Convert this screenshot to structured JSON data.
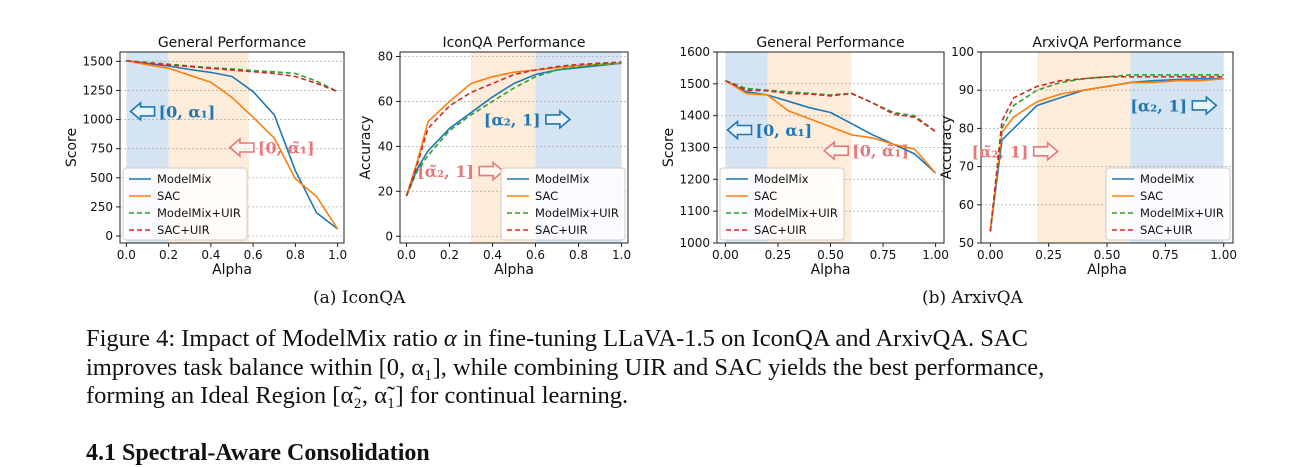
{
  "colors": {
    "ModelMix": "#1f77b4",
    "SAC": "#ff7f0e",
    "ModelMix+UIR": "#2ca02c",
    "SAC+UIR": "#d62728",
    "region_blue": "#c6dbef",
    "region_orange": "#fde6cf",
    "arrow_blue": "#1f77b4",
    "arrow_red": "#e8777a"
  },
  "legend_labels": [
    "ModelMix",
    "SAC",
    "ModelMix+UIR",
    "SAC+UIR"
  ],
  "chart_data": [
    {
      "type": "line",
      "title": "General Performance",
      "xlabel": "Alpha",
      "ylabel": "Score",
      "xlim": [
        -0.03,
        1.03
      ],
      "ylim": [
        -60,
        1580
      ],
      "xticks": [
        0.0,
        0.2,
        0.4,
        0.6,
        0.8,
        1.0
      ],
      "xtick_labels": [
        "0.0",
        "0.2",
        "0.4",
        "0.6",
        "0.8",
        "1.0"
      ],
      "yticks": [
        0,
        250,
        500,
        750,
        1000,
        1250,
        1500
      ],
      "ytick_labels": [
        "0",
        "250",
        "500",
        "750",
        "1000",
        "1250",
        "1500"
      ],
      "grid": "horizontal",
      "legend": "lower-left",
      "series": [
        {
          "name": "ModelMix",
          "x": [
            0.0,
            0.1,
            0.2,
            0.3,
            0.4,
            0.5,
            0.6,
            0.7,
            0.8,
            0.9,
            1.0
          ],
          "y": [
            1505,
            1480,
            1460,
            1430,
            1405,
            1370,
            1240,
            1040,
            560,
            200,
            60
          ]
        },
        {
          "name": "SAC",
          "x": [
            0.0,
            0.1,
            0.2,
            0.3,
            0.4,
            0.5,
            0.6,
            0.7,
            0.8,
            0.9,
            1.0
          ],
          "y": [
            1505,
            1470,
            1440,
            1380,
            1320,
            1190,
            1020,
            840,
            490,
            340,
            60
          ]
        },
        {
          "name": "ModelMix+UIR",
          "x": [
            0.0,
            0.1,
            0.2,
            0.3,
            0.4,
            0.5,
            0.6,
            0.7,
            0.8,
            0.9,
            1.0
          ],
          "y": [
            1505,
            1490,
            1475,
            1460,
            1445,
            1435,
            1420,
            1410,
            1395,
            1330,
            1240
          ]
        },
        {
          "name": "SAC+UIR",
          "x": [
            0.0,
            0.1,
            0.2,
            0.3,
            0.4,
            0.5,
            0.6,
            0.7,
            0.8,
            0.9,
            1.0
          ],
          "y": [
            1505,
            1485,
            1470,
            1455,
            1440,
            1425,
            1410,
            1395,
            1370,
            1310,
            1240
          ]
        }
      ],
      "regions": [
        {
          "color": "blue",
          "from": 0.0,
          "to": 0.2
        },
        {
          "color": "orange",
          "from": 0.2,
          "to": 0.58
        }
      ],
      "annotations": [
        {
          "text": "[0, α₁]",
          "color": "blue",
          "arrow": "left",
          "x": 0.02,
          "y": 1070
        },
        {
          "text": "[0, α̃₁]",
          "color": "red",
          "arrow": "left",
          "x": 0.49,
          "y": 760
        }
      ]
    },
    {
      "type": "line",
      "title": "IconQA Performance",
      "xlabel": "Alpha",
      "ylabel": "Accuracy",
      "xlim": [
        -0.03,
        1.03
      ],
      "ylim": [
        -3,
        82
      ],
      "xticks": [
        0.0,
        0.2,
        0.4,
        0.6,
        0.8,
        1.0
      ],
      "xtick_labels": [
        "0.0",
        "0.2",
        "0.4",
        "0.6",
        "0.8",
        "1.0"
      ],
      "yticks": [
        0,
        20,
        40,
        60,
        80
      ],
      "ytick_labels": [
        "0",
        "20",
        "40",
        "60",
        "80"
      ],
      "grid": "horizontal",
      "legend": "lower-right",
      "series": [
        {
          "name": "ModelMix",
          "x": [
            0.0,
            0.05,
            0.1,
            0.2,
            0.3,
            0.4,
            0.5,
            0.6,
            0.7,
            0.8,
            0.9,
            1.0
          ],
          "y": [
            18,
            30,
            38,
            48,
            55,
            62,
            68,
            72,
            74,
            75,
            76,
            77
          ]
        },
        {
          "name": "SAC",
          "x": [
            0.0,
            0.05,
            0.1,
            0.2,
            0.3,
            0.4,
            0.5,
            0.6,
            0.7,
            0.8,
            0.9,
            1.0
          ],
          "y": [
            18,
            33,
            51,
            60,
            68,
            71,
            73,
            74,
            75,
            76,
            76.5,
            77
          ]
        },
        {
          "name": "ModelMix+UIR",
          "x": [
            0.0,
            0.05,
            0.1,
            0.2,
            0.3,
            0.4,
            0.5,
            0.6,
            0.7,
            0.8,
            0.9,
            1.0
          ],
          "y": [
            18,
            29,
            36,
            47,
            54,
            60,
            66,
            71,
            74,
            75.5,
            76.5,
            77
          ]
        },
        {
          "name": "SAC+UIR",
          "x": [
            0.0,
            0.05,
            0.1,
            0.2,
            0.3,
            0.4,
            0.5,
            0.6,
            0.7,
            0.8,
            0.9,
            1.0
          ],
          "y": [
            18,
            32,
            48,
            58,
            64,
            68,
            72,
            74,
            75.5,
            76.5,
            77,
            77.5
          ]
        }
      ],
      "regions": [
        {
          "color": "orange",
          "from": 0.3,
          "to": 0.6
        },
        {
          "color": "blue",
          "from": 0.6,
          "to": 1.0
        }
      ],
      "annotations": [
        {
          "text": "[α₂, 1]",
          "color": "blue",
          "arrow": "right",
          "x": 0.36,
          "y": 52
        },
        {
          "text": "[α̃₂, 1]",
          "color": "red",
          "arrow": "right",
          "x": 0.05,
          "y": 29
        }
      ]
    },
    {
      "type": "line",
      "title": "General Performance",
      "xlabel": "Alpha",
      "ylabel": "Score",
      "xlim": [
        -0.04,
        1.04
      ],
      "ylim": [
        1000,
        1600
      ],
      "xticks": [
        0.0,
        0.25,
        0.5,
        0.75,
        1.0
      ],
      "xtick_labels": [
        "0.00",
        "0.25",
        "0.50",
        "0.75",
        "1.00"
      ],
      "yticks": [
        1000,
        1100,
        1200,
        1300,
        1400,
        1500,
        1600
      ],
      "ytick_labels": [
        "1000",
        "1100",
        "1200",
        "1300",
        "1400",
        "1500",
        "1600"
      ],
      "grid": "horizontal",
      "legend": "lower-left",
      "series": [
        {
          "name": "ModelMix",
          "x": [
            0.0,
            0.1,
            0.2,
            0.3,
            0.4,
            0.5,
            0.6,
            0.7,
            0.8,
            0.9,
            1.0
          ],
          "y": [
            1510,
            1475,
            1465,
            1445,
            1425,
            1410,
            1375,
            1340,
            1310,
            1280,
            1220
          ]
        },
        {
          "name": "SAC",
          "x": [
            0.0,
            0.1,
            0.2,
            0.3,
            0.4,
            0.5,
            0.6,
            0.7,
            0.8,
            0.9,
            1.0
          ],
          "y": [
            1510,
            1470,
            1465,
            1415,
            1390,
            1365,
            1340,
            1330,
            1310,
            1295,
            1220
          ]
        },
        {
          "name": "ModelMix+UIR",
          "x": [
            0.0,
            0.1,
            0.2,
            0.3,
            0.4,
            0.5,
            0.6,
            0.7,
            0.8,
            0.9,
            1.0
          ],
          "y": [
            1510,
            1485,
            1480,
            1475,
            1470,
            1465,
            1470,
            1440,
            1410,
            1400,
            1350
          ]
        },
        {
          "name": "SAC+UIR",
          "x": [
            0.0,
            0.1,
            0.2,
            0.3,
            0.4,
            0.5,
            0.6,
            0.7,
            0.8,
            0.9,
            1.0
          ],
          "y": [
            1510,
            1480,
            1478,
            1470,
            1468,
            1462,
            1470,
            1440,
            1405,
            1395,
            1350
          ]
        }
      ],
      "regions": [
        {
          "color": "blue",
          "from": 0.0,
          "to": 0.2
        },
        {
          "color": "orange",
          "from": 0.2,
          "to": 0.6
        }
      ],
      "annotations": [
        {
          "text": "[0, α₁]",
          "color": "blue",
          "arrow": "left",
          "x": 0.01,
          "y": 1355
        },
        {
          "text": "[0, α̃₁]",
          "color": "red",
          "arrow": "left",
          "x": 0.47,
          "y": 1290
        }
      ]
    },
    {
      "type": "line",
      "title": "ArxivQA Performance",
      "xlabel": "Alpha",
      "ylabel": "Accuracy",
      "xlim": [
        -0.04,
        1.04
      ],
      "ylim": [
        50,
        100
      ],
      "xticks": [
        0.0,
        0.25,
        0.5,
        0.75,
        1.0
      ],
      "xtick_labels": [
        "0.00",
        "0.25",
        "0.50",
        "0.75",
        "1.00"
      ],
      "yticks": [
        50,
        60,
        70,
        80,
        90,
        100
      ],
      "ytick_labels": [
        "50",
        "60",
        "70",
        "80",
        "90",
        "100"
      ],
      "grid": "horizontal",
      "legend": "lower-right",
      "series": [
        {
          "name": "ModelMix",
          "x": [
            0.0,
            0.05,
            0.1,
            0.2,
            0.3,
            0.4,
            0.5,
            0.6,
            0.7,
            0.8,
            0.9,
            1.0
          ],
          "y": [
            53,
            77,
            80,
            86,
            88,
            90,
            91,
            92,
            92.5,
            92.8,
            93,
            93
          ]
        },
        {
          "name": "SAC",
          "x": [
            0.0,
            0.05,
            0.1,
            0.2,
            0.3,
            0.4,
            0.5,
            0.6,
            0.7,
            0.8,
            0.9,
            1.0
          ],
          "y": [
            53,
            79,
            83,
            87,
            89,
            90,
            91,
            92,
            92,
            92.5,
            92.5,
            93
          ]
        },
        {
          "name": "ModelMix+UIR",
          "x": [
            0.0,
            0.05,
            0.1,
            0.2,
            0.3,
            0.4,
            0.5,
            0.6,
            0.7,
            0.8,
            0.9,
            1.0
          ],
          "y": [
            53,
            80,
            86,
            90,
            92,
            93,
            93.5,
            94,
            94,
            94,
            94,
            94
          ]
        },
        {
          "name": "SAC+UIR",
          "x": [
            0.0,
            0.05,
            0.1,
            0.2,
            0.3,
            0.4,
            0.5,
            0.6,
            0.7,
            0.8,
            0.9,
            1.0
          ],
          "y": [
            53,
            82,
            88,
            91,
            92.5,
            93,
            93.5,
            93.5,
            93.5,
            93.5,
            93.5,
            93.5
          ]
        }
      ],
      "regions": [
        {
          "color": "orange",
          "from": 0.2,
          "to": 0.6
        },
        {
          "color": "blue",
          "from": 0.6,
          "to": 1.0
        }
      ],
      "annotations": [
        {
          "text": "[α₂, 1]",
          "color": "blue",
          "arrow": "right",
          "x": 0.6,
          "y": 86
        },
        {
          "text": "[α̃₂, 1]",
          "color": "red",
          "arrow": "right",
          "x": -0.08,
          "y": 74
        }
      ]
    }
  ],
  "subcaptions": {
    "a": "(a) IconQA",
    "b": "(b) ArxivQA"
  },
  "caption": {
    "line1_a": "Figure 4: Impact of ModelMix ratio ",
    "line1_alpha": "α",
    "line1_b": " in fine-tuning LLaVA-1.5 on IconQA and ArxivQA. SAC",
    "line2_a": "improves task balance within ",
    "line2_math": "[0, α₁]",
    "line2_b": ", while combining UIR and SAC yields the best performance,",
    "line3_a": "forming an Ideal Region ",
    "line3_math": "[α̃₂, α̃₁]",
    "line3_b": " for continual learning."
  },
  "section_heading": "4.1   Spectral-Aware Consolidation"
}
